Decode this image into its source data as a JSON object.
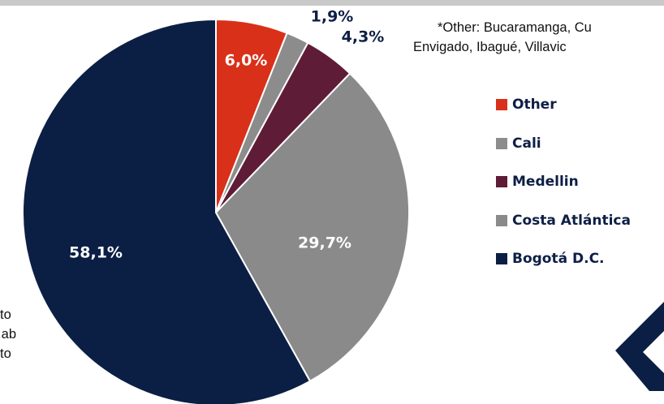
{
  "chart_data": {
    "type": "pie",
    "start_angle_deg": 0,
    "direction": "clockwise",
    "slices": [
      {
        "name": "Other",
        "value": 6.0,
        "label": "6,0%",
        "color": "#d9301a",
        "label_color": "#ffffff"
      },
      {
        "name": "Cali",
        "value": 1.9,
        "label": "1,9%",
        "color": "#8c8c8c",
        "label_color": "#0e1f45"
      },
      {
        "name": "Medellin",
        "value": 4.3,
        "label": "4,3%",
        "color": "#5e1c36",
        "label_color": "#0e1f45"
      },
      {
        "name": "Costa Atlántica",
        "value": 29.7,
        "label": "29,7%",
        "color": "#8a8a8a",
        "label_color": "#ffffff"
      },
      {
        "name": "Bogotá D.C.",
        "value": 58.1,
        "label": "58,1%",
        "color": "#0b1f45",
        "label_color": "#ffffff"
      }
    ],
    "legend_order": [
      "Other",
      "Cali",
      "Medellin",
      "Costa Atlántica",
      "Bogotá D.C."
    ],
    "legend_position": "right"
  },
  "footnote": {
    "line1": "*Other: Bucaramanga, Cu",
    "line2": "Envigado, Ibagué, Villavic"
  },
  "left_notes": [
    "to",
    "ab.",
    "to"
  ],
  "colors": {
    "text_dark": "#111111",
    "legend_text": "#0e1f45",
    "top_rule": "#c9c9c9",
    "logo": "#0b1f45"
  },
  "logo": {
    "icon": "brand-logo-icon"
  }
}
